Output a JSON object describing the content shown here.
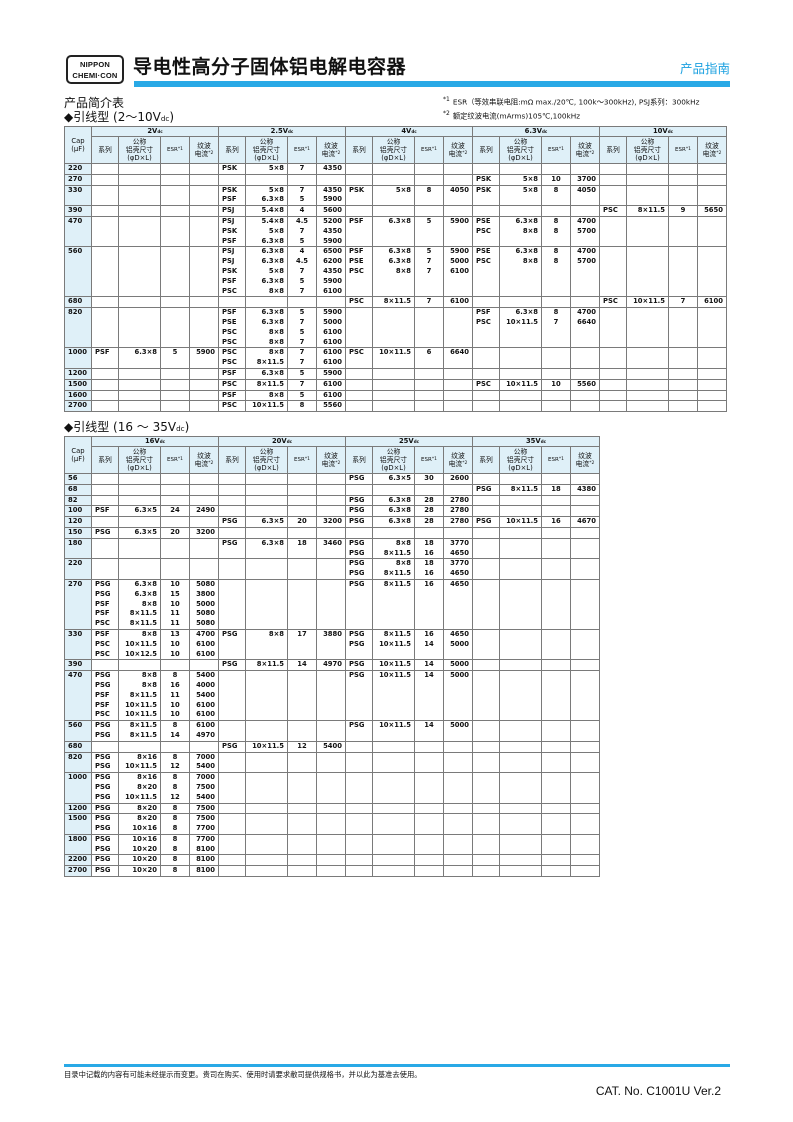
{
  "header": {
    "logo_line1": "NIPPON",
    "logo_line2": "CHEMI·CON",
    "title": "导电性高分子固体铝电解电容器",
    "guide": "产品指南"
  },
  "intro": "产品简介表",
  "notes": {
    "n1_mark": "*1",
    "n1": "ESR（等效串联电阻:mΩ max./20℃, 100k～300kHz), PSJ系列：300kHz",
    "n2_mark": "*2",
    "n2": "额定纹波电流(mArms)105℃,100kHz"
  },
  "col_headers": {
    "cap1": "Cap",
    "cap2": "(μF)",
    "series": "系列",
    "size1": "公称",
    "size2": "铝壳尺寸",
    "size3": "(φD×L)",
    "esr": "ESR",
    "esr_mark": "*1",
    "rip1": "纹波",
    "rip2": "电流",
    "rip_mark": "*2",
    "dc": "dc"
  },
  "tables": [
    {
      "title": "◆引线型 (2〜10V",
      "title_sub": "dc",
      "title_end": ")",
      "voltages": [
        "2V",
        "2.5V",
        "4V",
        "6.3V",
        "10V"
      ],
      "rows": [
        {
          "cap": "220",
          "cells": [
            [],
            [
              [
                "PSK",
                "5×8",
                "7",
                "4350"
              ]
            ],
            [],
            [],
            []
          ]
        },
        {
          "cap": "270",
          "cells": [
            [],
            [],
            [],
            [
              [
                "PSK",
                "5×8",
                "10",
                "3700"
              ]
            ],
            []
          ]
        },
        {
          "cap": "330",
          "cells": [
            [],
            [
              [
                "PSK",
                "5×8",
                "7",
                "4350"
              ],
              [
                "PSF",
                "6.3×8",
                "5",
                "5900"
              ]
            ],
            [
              [
                "PSK",
                "5×8",
                "8",
                "4050"
              ]
            ],
            [
              [
                "PSK",
                "5×8",
                "8",
                "4050"
              ]
            ],
            []
          ]
        },
        {
          "cap": "390",
          "cells": [
            [],
            [
              [
                "PSJ",
                "5.4×8",
                "4",
                "5600"
              ]
            ],
            [],
            [],
            [
              [
                "PSC",
                "8×11.5",
                "9",
                "5650"
              ]
            ]
          ]
        },
        {
          "cap": "470",
          "cells": [
            [],
            [
              [
                "PSJ",
                "5.4×8",
                "4.5",
                "5200"
              ],
              [
                "PSK",
                "5×8",
                "7",
                "4350"
              ],
              [
                "PSF",
                "6.3×8",
                "5",
                "5900"
              ]
            ],
            [
              [
                "PSF",
                "6.3×8",
                "5",
                "5900"
              ]
            ],
            [
              [
                "PSE",
                "6.3×8",
                "8",
                "4700"
              ],
              [
                "PSC",
                "8×8",
                "8",
                "5700"
              ]
            ],
            []
          ]
        },
        {
          "cap": "560",
          "cells": [
            [],
            [
              [
                "PSJ",
                "6.3×8",
                "4",
                "6500"
              ],
              [
                "PSJ",
                "6.3×8",
                "4.5",
                "6200"
              ],
              [
                "PSK",
                "5×8",
                "7",
                "4350"
              ],
              [
                "PSF",
                "6.3×8",
                "5",
                "5900"
              ],
              [
                "PSC",
                "8×8",
                "7",
                "6100"
              ]
            ],
            [
              [
                "PSF",
                "6.3×8",
                "5",
                "5900"
              ],
              [
                "PSE",
                "6.3×8",
                "7",
                "5000"
              ],
              [
                "PSC",
                "8×8",
                "7",
                "6100"
              ]
            ],
            [
              [
                "PSE",
                "6.3×8",
                "8",
                "4700"
              ],
              [
                "PSC",
                "8×8",
                "8",
                "5700"
              ]
            ],
            []
          ]
        },
        {
          "cap": "680",
          "cells": [
            [],
            [],
            [
              [
                "PSC",
                "8×11.5",
                "7",
                "6100"
              ]
            ],
            [],
            [
              [
                "PSC",
                "10×11.5",
                "7",
                "6100"
              ]
            ]
          ]
        },
        {
          "cap": "820",
          "cells": [
            [],
            [
              [
                "PSF",
                "6.3×8",
                "5",
                "5900"
              ],
              [
                "PSE",
                "6.3×8",
                "7",
                "5000"
              ],
              [
                "PSC",
                "8×8",
                "5",
                "6100"
              ],
              [
                "PSC",
                "8×8",
                "7",
                "6100"
              ]
            ],
            [],
            [
              [
                "PSF",
                "6.3×8",
                "8",
                "4700"
              ],
              [
                "PSC",
                "10×11.5",
                "7",
                "6640"
              ]
            ],
            []
          ]
        },
        {
          "cap": "1000",
          "cells": [
            [
              [
                "PSF",
                "6.3×8",
                "5",
                "5900"
              ]
            ],
            [
              [
                "PSC",
                "8×8",
                "7",
                "6100"
              ],
              [
                "PSC",
                "8×11.5",
                "7",
                "6100"
              ]
            ],
            [
              [
                "PSC",
                "10×11.5",
                "6",
                "6640"
              ]
            ],
            [],
            []
          ]
        },
        {
          "cap": "1200",
          "cells": [
            [],
            [
              [
                "PSF",
                "6.3×8",
                "5",
                "5900"
              ]
            ],
            [],
            [],
            []
          ]
        },
        {
          "cap": "1500",
          "cells": [
            [],
            [
              [
                "PSC",
                "8×11.5",
                "7",
                "6100"
              ]
            ],
            [],
            [
              [
                "PSC",
                "10×11.5",
                "10",
                "5560"
              ]
            ],
            []
          ]
        },
        {
          "cap": "1600",
          "cells": [
            [],
            [
              [
                "PSF",
                "8×8",
                "5",
                "6100"
              ]
            ],
            [],
            [],
            []
          ]
        },
        {
          "cap": "2700",
          "cells": [
            [],
            [
              [
                "PSC",
                "10×11.5",
                "8",
                "5560"
              ]
            ],
            [],
            [],
            []
          ]
        }
      ]
    },
    {
      "title": "◆引线型 (16 〜 35V",
      "title_sub": "dc",
      "title_end": ")",
      "voltages": [
        "16V",
        "20V",
        "25V",
        "35V"
      ],
      "rows": [
        {
          "cap": "56",
          "cells": [
            [],
            [],
            [
              [
                "PSG",
                "6.3×5",
                "30",
                "2600"
              ]
            ],
            []
          ]
        },
        {
          "cap": "68",
          "cells": [
            [],
            [],
            [],
            [
              [
                "PSG",
                "8×11.5",
                "18",
                "4380"
              ]
            ]
          ]
        },
        {
          "cap": "82",
          "cells": [
            [],
            [],
            [
              [
                "PSG",
                "6.3×8",
                "28",
                "2780"
              ]
            ],
            []
          ]
        },
        {
          "cap": "100",
          "cells": [
            [
              [
                "PSF",
                "6.3×5",
                "24",
                "2490"
              ]
            ],
            [],
            [
              [
                "PSG",
                "6.3×8",
                "28",
                "2780"
              ]
            ],
            []
          ]
        },
        {
          "cap": "120",
          "cells": [
            [],
            [
              [
                "PSG",
                "6.3×5",
                "20",
                "3200"
              ]
            ],
            [
              [
                "PSG",
                "6.3×8",
                "28",
                "2780"
              ]
            ],
            [
              [
                "PSG",
                "10×11.5",
                "16",
                "4670"
              ]
            ]
          ]
        },
        {
          "cap": "150",
          "cells": [
            [
              [
                "PSG",
                "6.3×5",
                "20",
                "3200"
              ]
            ],
            [],
            [],
            []
          ]
        },
        {
          "cap": "180",
          "cells": [
            [],
            [
              [
                "PSG",
                "6.3×8",
                "18",
                "3460"
              ]
            ],
            [
              [
                "PSG",
                "8×8",
                "18",
                "3770"
              ],
              [
                "PSG",
                "8×11.5",
                "16",
                "4650"
              ]
            ],
            []
          ]
        },
        {
          "cap": "220",
          "cells": [
            [],
            [],
            [
              [
                "PSG",
                "8×8",
                "18",
                "3770"
              ],
              [
                "PSG",
                "8×11.5",
                "16",
                "4650"
              ]
            ],
            []
          ]
        },
        {
          "cap": "270",
          "cells": [
            [
              [
                "PSG",
                "6.3×8",
                "10",
                "5080"
              ],
              [
                "PSG",
                "6.3×8",
                "15",
                "3800"
              ],
              [
                "PSF",
                "8×8",
                "10",
                "5000"
              ],
              [
                "PSF",
                "8×11.5",
                "11",
                "5080"
              ],
              [
                "PSC",
                "8×11.5",
                "11",
                "5080"
              ]
            ],
            [],
            [
              [
                "PSG",
                "8×11.5",
                "16",
                "4650"
              ]
            ],
            []
          ]
        },
        {
          "cap": "330",
          "cells": [
            [
              [
                "PSF",
                "8×8",
                "13",
                "4700"
              ],
              [
                "PSC",
                "10×11.5",
                "10",
                "6100"
              ],
              [
                "PSC",
                "10×12.5",
                "10",
                "6100"
              ]
            ],
            [
              [
                "PSG",
                "8×8",
                "17",
                "3880"
              ]
            ],
            [
              [
                "PSG",
                "8×11.5",
                "16",
                "4650"
              ],
              [
                "PSG",
                "10×11.5",
                "14",
                "5000"
              ]
            ],
            []
          ]
        },
        {
          "cap": "390",
          "cells": [
            [],
            [
              [
                "PSG",
                "8×11.5",
                "14",
                "4970"
              ]
            ],
            [
              [
                "PSG",
                "10×11.5",
                "14",
                "5000"
              ]
            ],
            []
          ]
        },
        {
          "cap": "470",
          "cells": [
            [
              [
                "PSG",
                "8×8",
                "8",
                "5400"
              ],
              [
                "PSG",
                "8×8",
                "16",
                "4000"
              ],
              [
                "PSF",
                "8×11.5",
                "11",
                "5400"
              ],
              [
                "PSF",
                "10×11.5",
                "10",
                "6100"
              ],
              [
                "PSC",
                "10×11.5",
                "10",
                "6100"
              ]
            ],
            [],
            [
              [
                "PSG",
                "10×11.5",
                "14",
                "5000"
              ]
            ],
            []
          ]
        },
        {
          "cap": "560",
          "cells": [
            [
              [
                "PSG",
                "8×11.5",
                "8",
                "6100"
              ],
              [
                "PSG",
                "8×11.5",
                "14",
                "4970"
              ]
            ],
            [],
            [
              [
                "PSG",
                "10×11.5",
                "14",
                "5000"
              ]
            ],
            []
          ]
        },
        {
          "cap": "680",
          "cells": [
            [],
            [
              [
                "PSG",
                "10×11.5",
                "12",
                "5400"
              ]
            ],
            [],
            []
          ]
        },
        {
          "cap": "820",
          "cells": [
            [
              [
                "PSG",
                "8×16",
                "8",
                "7000"
              ],
              [
                "PSG",
                "10×11.5",
                "12",
                "5400"
              ]
            ],
            [],
            [],
            []
          ]
        },
        {
          "cap": "1000",
          "cells": [
            [
              [
                "PSG",
                "8×16",
                "8",
                "7000"
              ],
              [
                "PSG",
                "8×20",
                "8",
                "7500"
              ],
              [
                "PSG",
                "10×11.5",
                "12",
                "5400"
              ]
            ],
            [],
            [],
            []
          ]
        },
        {
          "cap": "1200",
          "cells": [
            [
              [
                "PSG",
                "8×20",
                "8",
                "7500"
              ]
            ],
            [],
            [],
            []
          ]
        },
        {
          "cap": "1500",
          "cells": [
            [
              [
                "PSG",
                "8×20",
                "8",
                "7500"
              ],
              [
                "PSG",
                "10×16",
                "8",
                "7700"
              ]
            ],
            [],
            [],
            []
          ]
        },
        {
          "cap": "1800",
          "cells": [
            [
              [
                "PSG",
                "10×16",
                "8",
                "7700"
              ],
              [
                "PSG",
                "10×20",
                "8",
                "8100"
              ]
            ],
            [],
            [],
            []
          ]
        },
        {
          "cap": "2200",
          "cells": [
            [
              [
                "PSG",
                "10×20",
                "8",
                "8100"
              ]
            ],
            [],
            [],
            []
          ]
        },
        {
          "cap": "2700",
          "cells": [
            [
              [
                "PSG",
                "10×20",
                "8",
                "8100"
              ]
            ],
            [],
            [],
            []
          ]
        }
      ]
    }
  ],
  "footer": {
    "disclaimer": "目录中记载的内容有可能未经提示而变更。贵司在购买、使用时请要求敝司提供规格书，并以此为基准去使用。",
    "catalog": "CAT. No. C1001U Ver.2"
  },
  "colors": {
    "accent": "#29a9e6",
    "header_bg": "#dff0f8"
  }
}
